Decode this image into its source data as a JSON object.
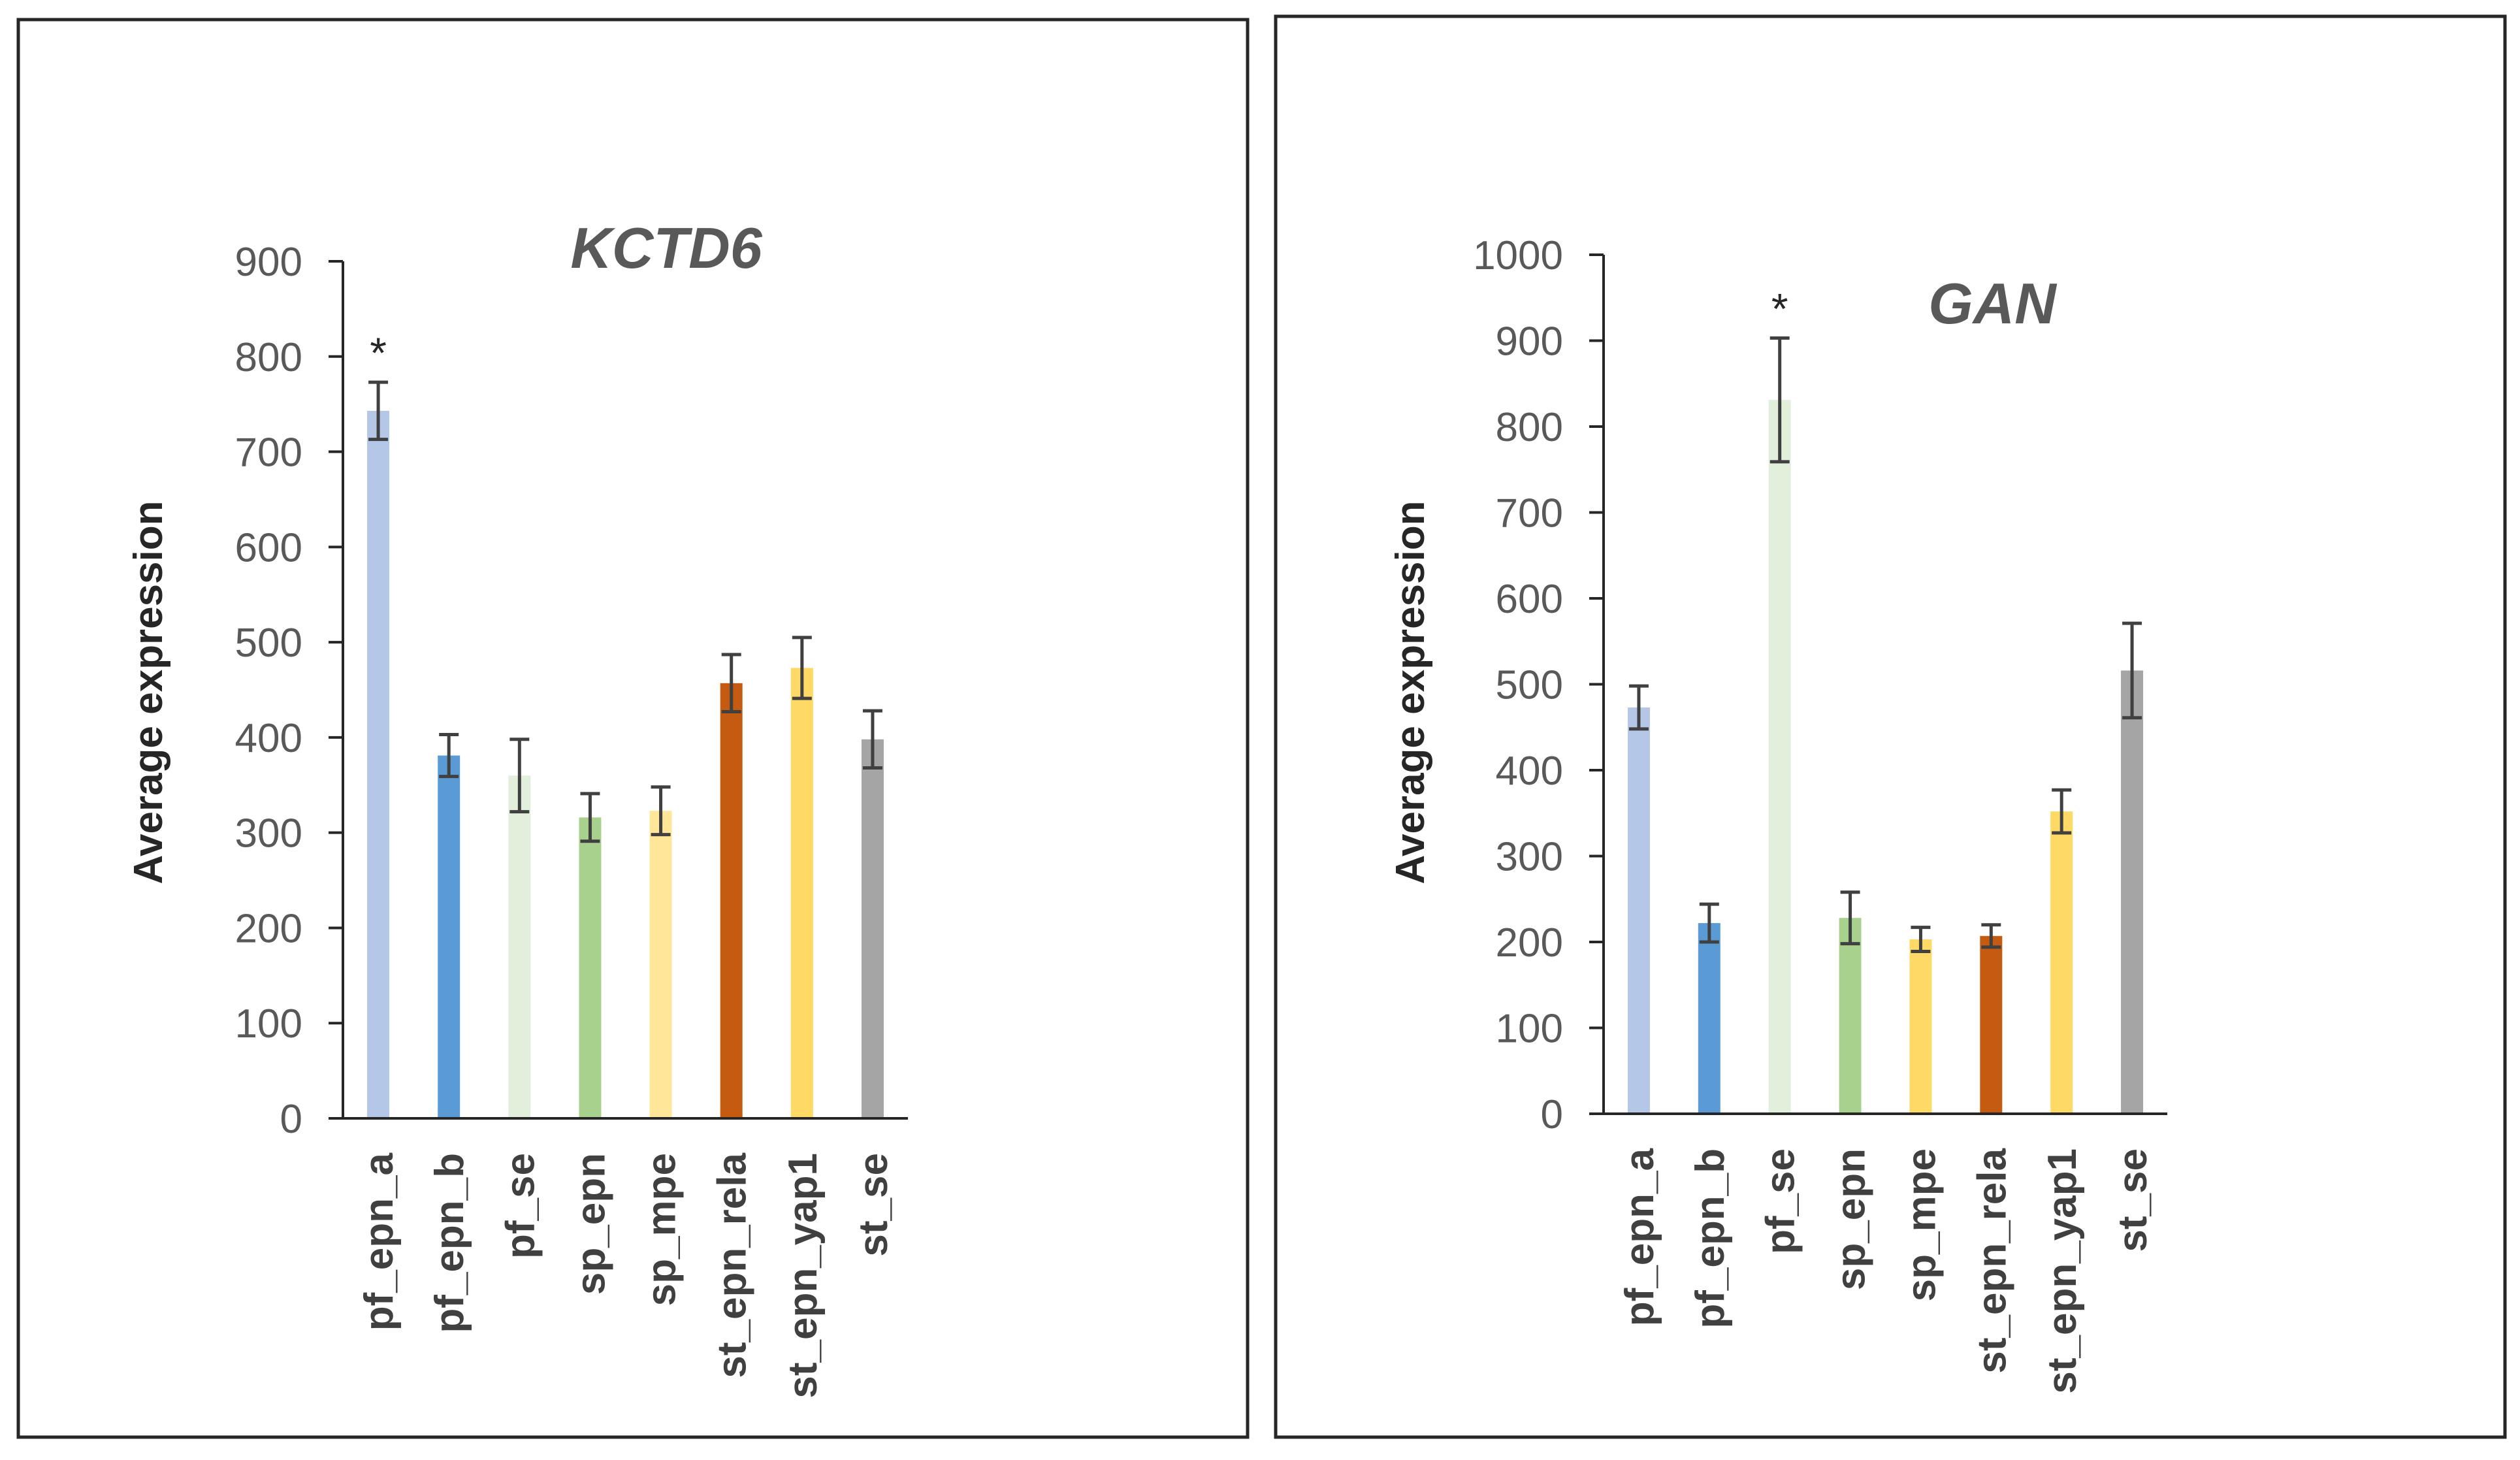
{
  "chart_data": [
    {
      "type": "bar",
      "title": "KCTD6",
      "xlabel": "",
      "ylabel": "Average expression",
      "ylim": [
        0,
        900
      ],
      "yticks": [
        0,
        100,
        200,
        300,
        400,
        500,
        600,
        700,
        800,
        900
      ],
      "categories": [
        "pf_epn_a",
        "pf_epn_b",
        "pf_se",
        "sp_epn",
        "sp_mpe",
        "st_epn_rela",
        "st_epn_yap1",
        "st_se"
      ],
      "values": [
        743,
        381,
        360,
        316,
        323,
        457,
        473,
        398
      ],
      "errors": [
        30,
        22,
        38,
        25,
        25,
        30,
        32,
        30
      ],
      "colors": [
        "#b4c7e7",
        "#5b9bd5",
        "#e2efda",
        "#a9d18e",
        "#ffe699",
        "#c55a11",
        "#ffd966",
        "#a5a5a5"
      ],
      "significance": [
        "*",
        "",
        "",
        "",
        "",
        "",
        "",
        ""
      ],
      "grid": false
    },
    {
      "type": "bar",
      "title": "GAN",
      "xlabel": "",
      "ylabel": "Average expression",
      "ylim": [
        0,
        1000
      ],
      "yticks": [
        0,
        100,
        200,
        300,
        400,
        500,
        600,
        700,
        800,
        900,
        1000
      ],
      "categories": [
        "pf_epn_a",
        "pf_epn_b",
        "pf_se",
        "sp_epn",
        "sp_mpe",
        "st_epn_rela",
        "st_epn_yap1",
        "st_se"
      ],
      "values": [
        473,
        222,
        831,
        228,
        203,
        207,
        352,
        516
      ],
      "errors": [
        25,
        22,
        72,
        30,
        14,
        13,
        25,
        55
      ],
      "colors": [
        "#b4c7e7",
        "#5b9bd5",
        "#e2efda",
        "#a9d18e",
        "#ffd966",
        "#c55a11",
        "#ffd966",
        "#a5a5a5"
      ],
      "significance": [
        "",
        "",
        "*",
        "",
        "",
        "",
        "",
        ""
      ],
      "grid": false
    }
  ]
}
